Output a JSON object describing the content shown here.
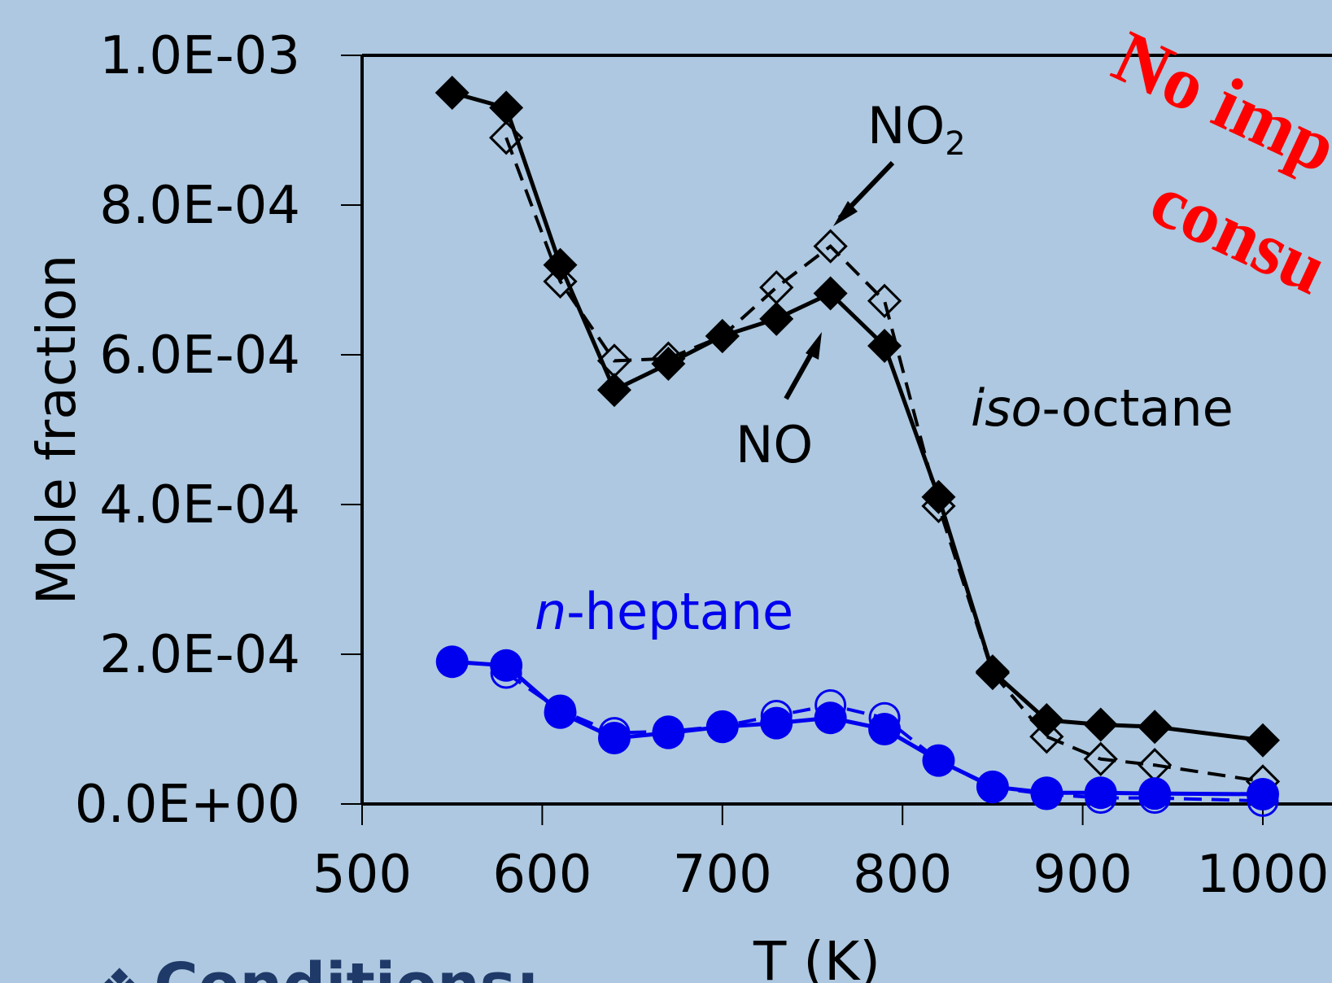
{
  "chart_data": {
    "type": "line",
    "xlabel": "T (K)",
    "ylabel": "Mole fraction",
    "xlim": [
      500,
      1000
    ],
    "ylim": [
      0,
      0.001
    ],
    "xticks": [
      500,
      600,
      700,
      800,
      900,
      1000
    ],
    "yticks": [
      0,
      0.0002,
      0.0004,
      0.0006,
      0.0008,
      0.001
    ],
    "xtick_labels": [
      "500",
      "600",
      "700",
      "800",
      "900",
      "1000"
    ],
    "ytick_labels": [
      "0.0E+00",
      "2.0E-04",
      "4.0E-04",
      "6.0E-04",
      "8.0E-04",
      "1.0E-03"
    ],
    "grid": false,
    "series": [
      {
        "fuel": "iso-octane",
        "species": "NO",
        "color": "#000000",
        "marker": "diamond-filled",
        "line": "solid",
        "x": [
          550,
          580,
          610,
          640,
          670,
          700,
          730,
          760,
          790,
          820,
          850,
          880,
          910,
          940,
          1000
        ],
        "y": [
          0.00095,
          0.00093,
          0.00072,
          0.000553,
          0.000588,
          0.000625,
          0.000648,
          0.000682,
          0.000612,
          0.00041,
          0.000177,
          0.000112,
          0.000106,
          0.000103,
          8.5e-05
        ]
      },
      {
        "fuel": "iso-octane",
        "species": "NO2",
        "color": "#000000",
        "marker": "diamond-open",
        "line": "dashed",
        "x": [
          580,
          610,
          640,
          670,
          700,
          730,
          760,
          790,
          820,
          850,
          880,
          910,
          940,
          1000
        ],
        "y": [
          0.00089,
          0.000698,
          0.000592,
          0.000595,
          0.000625,
          0.00069,
          0.000745,
          0.000672,
          0.000398,
          0.000175,
          9e-05,
          6e-05,
          5.2e-05,
          3e-05
        ]
      },
      {
        "fuel": "n-heptane",
        "species": "NO",
        "color": "#0000ee",
        "marker": "circle-filled",
        "line": "solid",
        "x": [
          550,
          580,
          610,
          640,
          670,
          700,
          730,
          760,
          790,
          820,
          850,
          880,
          910,
          940,
          1000
        ],
        "y": [
          0.00019,
          0.000185,
          0.000122,
          8.8e-05,
          9.5e-05,
          0.000103,
          0.000108,
          0.000115,
          0.0001,
          5.8e-05,
          2.3e-05,
          1.5e-05,
          1.5e-05,
          1.4e-05,
          1.3e-05
        ]
      },
      {
        "fuel": "n-heptane",
        "species": "NO2",
        "color": "#0000ee",
        "marker": "circle-open",
        "line": "dashed",
        "x": [
          580,
          610,
          640,
          670,
          700,
          730,
          760,
          790,
          820,
          850,
          880,
          910,
          940,
          1000
        ],
        "y": [
          0.000175,
          0.000125,
          9.5e-05,
          9.7e-05,
          0.000104,
          0.000118,
          0.000132,
          0.000115,
          5.8e-05,
          2.2e-05,
          1.3e-05,
          8e-06,
          8e-06,
          4e-06
        ]
      }
    ],
    "annotations": {
      "no2_label": "NO",
      "no2_subscript": "2",
      "no_label": "NO",
      "iso_octane_prefix": "iso",
      "iso_octane_suffix": "-octane",
      "n_heptane_prefix": "n",
      "n_heptane_suffix": "-heptane",
      "stamp_line1": "No imp",
      "stamp_line2": "consu"
    }
  },
  "conditions": {
    "bullet": "❖",
    "label": "Conditions:"
  },
  "colors": {
    "background": "#adc8e0",
    "black_series": "#000000",
    "blue_series": "#0000ee",
    "stamp": "#ff0000",
    "conditions_text": "#1f3a68"
  }
}
